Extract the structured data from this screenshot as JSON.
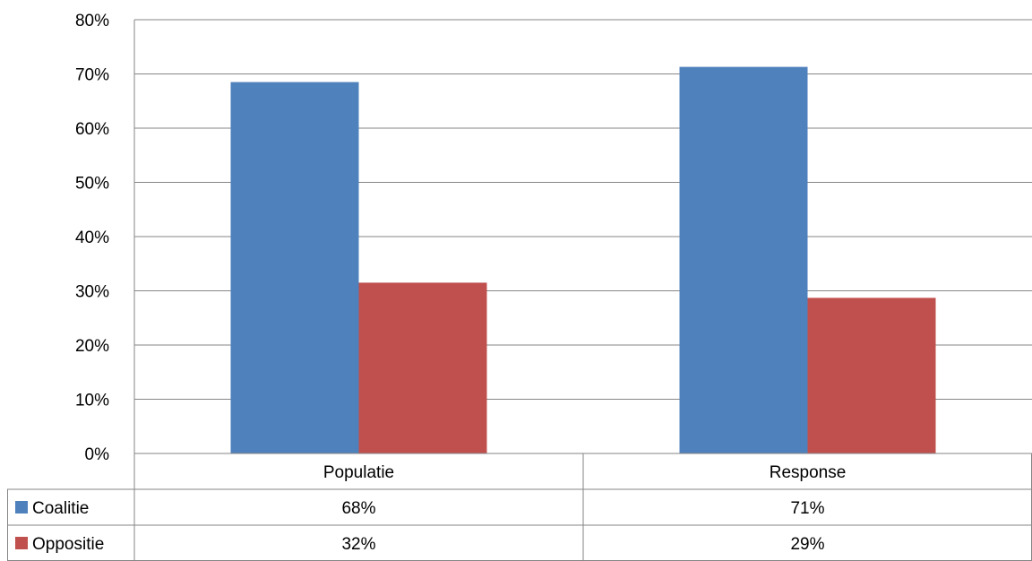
{
  "chart_data": {
    "type": "bar",
    "categories": [
      "Populatie",
      "Response"
    ],
    "series": [
      {
        "name": "Coalitie",
        "values": [
          0.685,
          0.713
        ],
        "labels": [
          "68%",
          "71%"
        ],
        "color": "#4F81BD"
      },
      {
        "name": "Oppositie",
        "values": [
          0.315,
          0.287
        ],
        "labels": [
          "32%",
          "29%"
        ],
        "color": "#C0504D"
      }
    ],
    "ylim": [
      0,
      0.8
    ],
    "yticks": [
      "0%",
      "10%",
      "20%",
      "30%",
      "40%",
      "50%",
      "60%",
      "70%",
      "80%"
    ],
    "grid": true,
    "legend": "data-table"
  }
}
